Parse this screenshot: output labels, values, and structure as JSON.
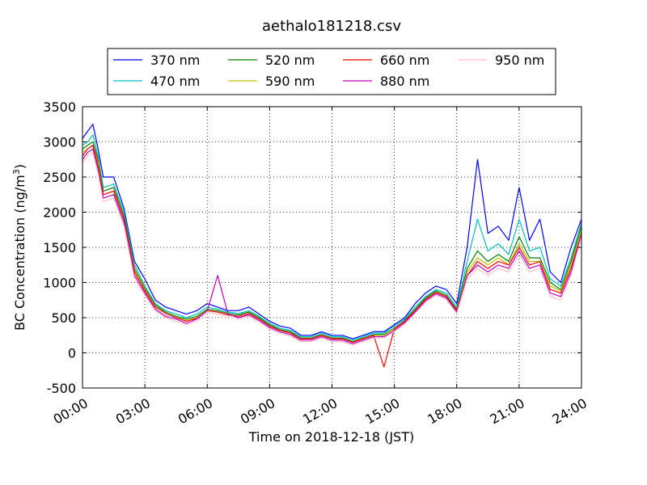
{
  "chart_data": {
    "type": "line",
    "title": "aethalo181218.csv",
    "xlabel": "Time on 2018-12-18 (JST)",
    "ylabel": "BC Concentration (ng/m³)",
    "ylabel_main": "BC Concentration (ng/m",
    "ylabel_sup": "3",
    "ylabel_end": ")",
    "xlim": [
      "00:00",
      "24:00"
    ],
    "ylim": [
      -500,
      3500
    ],
    "x_ticks": [
      "00:00",
      "03:00",
      "06:00",
      "09:00",
      "12:00",
      "15:00",
      "18:00",
      "21:00",
      "24:00"
    ],
    "y_ticks": [
      3500,
      3000,
      2500,
      2000,
      1500,
      1000,
      500,
      0,
      -500
    ],
    "grid": true,
    "legend_position": "top-center",
    "x_hours": [
      0,
      0.25,
      0.5,
      0.75,
      1,
      1.5,
      2,
      2.5,
      3,
      3.5,
      4,
      4.5,
      5,
      5.5,
      6,
      6.5,
      7,
      7.5,
      8,
      8.5,
      9,
      9.5,
      10,
      10.5,
      11,
      11.5,
      12,
      12.5,
      13,
      13.5,
      14,
      14.5,
      15,
      15.5,
      16,
      16.5,
      17,
      17.5,
      18,
      18.5,
      19,
      19.5,
      20,
      20.5,
      21,
      21.5,
      22,
      22.5,
      23,
      23.5,
      24
    ],
    "series": [
      {
        "name": "370 nm",
        "color": "#0000ff",
        "values": [
          3050,
          3150,
          3250,
          2900,
          2500,
          2500,
          2050,
          1300,
          1050,
          750,
          650,
          600,
          550,
          600,
          700,
          650,
          600,
          600,
          650,
          550,
          450,
          380,
          350,
          250,
          250,
          300,
          250,
          250,
          200,
          250,
          300,
          300,
          400,
          500,
          700,
          850,
          950,
          900,
          700,
          1500,
          2750,
          1700,
          1800,
          1600,
          2350,
          1600,
          1900,
          1150,
          1000,
          1500,
          1900
        ]
      },
      {
        "name": "470 nm",
        "color": "#00bfbf",
        "values": [
          2950,
          3000,
          3100,
          2800,
          2350,
          2400,
          2000,
          1250,
          950,
          700,
          600,
          550,
          500,
          550,
          650,
          620,
          580,
          560,
          600,
          520,
          420,
          350,
          320,
          230,
          230,
          280,
          230,
          230,
          180,
          230,
          280,
          280,
          380,
          480,
          650,
          800,
          900,
          850,
          650,
          1300,
          1900,
          1450,
          1550,
          1400,
          1900,
          1450,
          1500,
          1050,
          950,
          1350,
          1850
        ]
      },
      {
        "name": "520 nm",
        "color": "#008000",
        "values": [
          2900,
          2950,
          3000,
          2750,
          2300,
          2350,
          1950,
          1200,
          920,
          680,
          580,
          520,
          480,
          520,
          620,
          600,
          560,
          540,
          580,
          500,
          400,
          330,
          300,
          210,
          210,
          260,
          210,
          210,
          160,
          210,
          260,
          260,
          350,
          460,
          620,
          780,
          880,
          820,
          620,
          1200,
          1450,
          1300,
          1400,
          1300,
          1650,
          1350,
          1350,
          1000,
          900,
          1300,
          1800
        ]
      },
      {
        "name": "590 nm",
        "color": "#bfbf00",
        "values": [
          2850,
          2900,
          2950,
          2700,
          2250,
          2300,
          1900,
          1180,
          900,
          660,
          560,
          500,
          460,
          500,
          600,
          580,
          540,
          520,
          560,
          480,
          380,
          320,
          280,
          200,
          200,
          250,
          200,
          200,
          150,
          200,
          250,
          250,
          340,
          450,
          600,
          760,
          860,
          800,
          600,
          1150,
          1350,
          1250,
          1350,
          1250,
          1550,
          1300,
          1300,
          950,
          880,
          1250,
          1750
        ]
      },
      {
        "name": "660 nm",
        "color": "#ff0000",
        "values": [
          2800,
          2900,
          2950,
          2650,
          2250,
          2300,
          1900,
          1150,
          880,
          650,
          560,
          500,
          450,
          490,
          600,
          580,
          540,
          520,
          560,
          480,
          380,
          320,
          280,
          200,
          200,
          250,
          200,
          200,
          150,
          200,
          250,
          -200,
          340,
          450,
          600,
          760,
          860,
          800,
          600,
          1100,
          1300,
          1200,
          1300,
          1250,
          1500,
          1250,
          1300,
          900,
          850,
          1200,
          1700
        ]
      },
      {
        "name": "880 nm",
        "color": "#bf00bf",
        "values": [
          2750,
          2850,
          2900,
          2600,
          2200,
          2250,
          1850,
          1100,
          850,
          620,
          520,
          480,
          420,
          480,
          600,
          1100,
          550,
          500,
          540,
          460,
          360,
          300,
          260,
          180,
          180,
          230,
          180,
          180,
          130,
          180,
          230,
          230,
          320,
          430,
          580,
          740,
          840,
          780,
          580,
          1100,
          1250,
          1150,
          1250,
          1200,
          1450,
          1200,
          1250,
          850,
          800,
          1150,
          1700
        ]
      },
      {
        "name": "950 nm",
        "color": "#ffc0cb",
        "values": [
          2700,
          2800,
          2850,
          2550,
          2150,
          2200,
          1800,
          1050,
          820,
          600,
          500,
          450,
          400,
          450,
          580,
          550,
          520,
          480,
          520,
          440,
          340,
          280,
          240,
          160,
          160,
          210,
          160,
          160,
          110,
          160,
          210,
          210,
          300,
          410,
          560,
          720,
          820,
          760,
          560,
          1050,
          1200,
          1100,
          1200,
          1150,
          1400,
          1150,
          1200,
          800,
          750,
          1100,
          1650
        ]
      }
    ]
  }
}
